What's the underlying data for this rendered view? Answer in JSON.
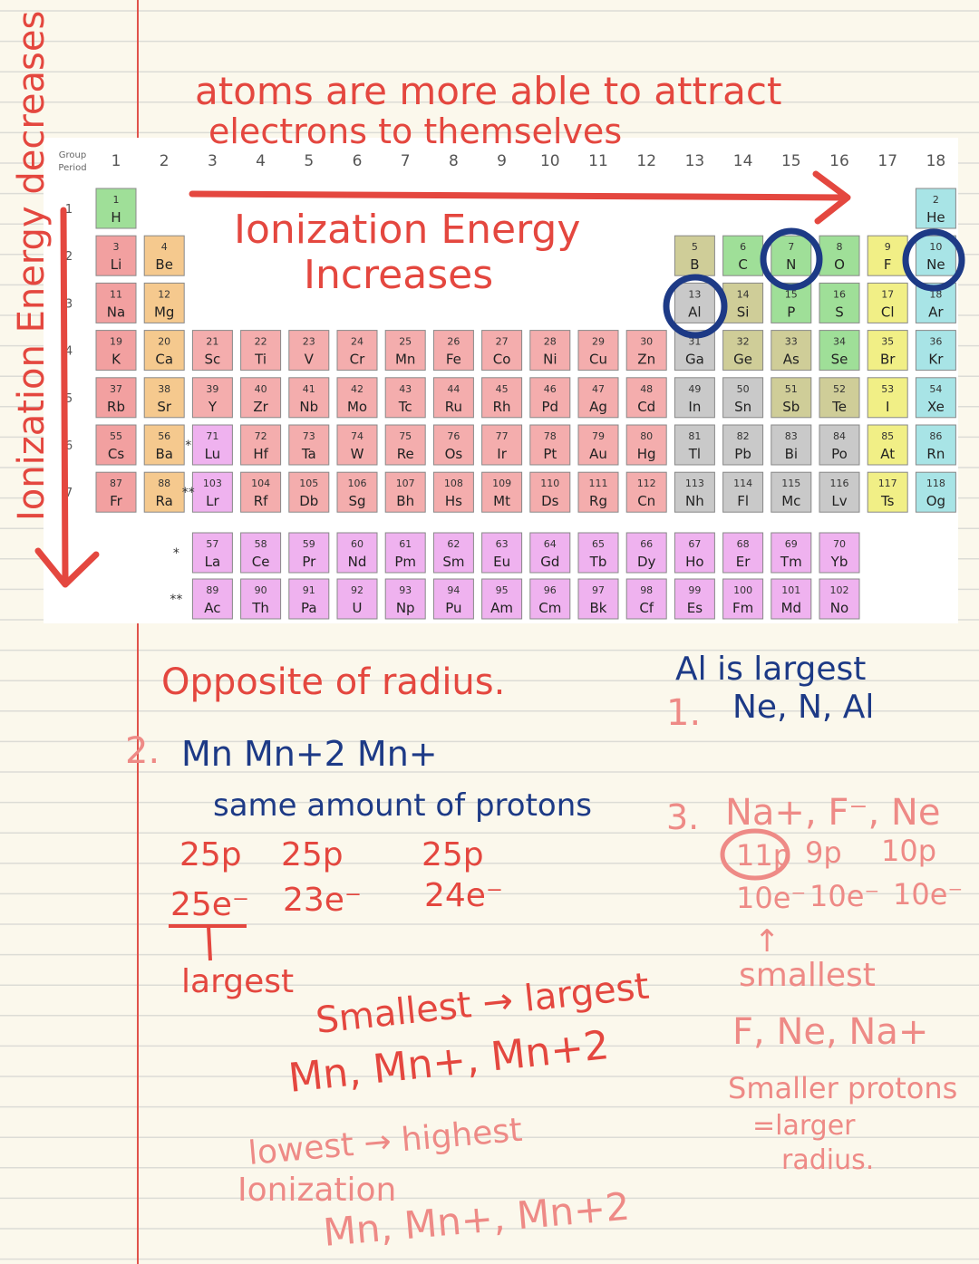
{
  "notes": {
    "top_heading": [
      "atoms are more able to attract",
      "electrons to themselves"
    ],
    "ie_increases": [
      "Ionization Energy",
      "Increases"
    ],
    "ie_decreases": "Ionization Energy decreases",
    "opposite": "Opposite of radius.",
    "q1_answer": "Al is largest",
    "q1_number": "1.",
    "q1_order": "Ne, N, Al",
    "q2_number": "2.",
    "q2_ions": "Mn  Mn+2  Mn+",
    "q2_same": "same amount of protons",
    "q2_protons": [
      "25p",
      "25p",
      "25p"
    ],
    "q2_electrons": [
      "25e⁻",
      "23e⁻",
      "24e⁻"
    ],
    "q2_largest": "largest",
    "q2_size_heading": "Smallest → largest",
    "q2_size_order": "Mn, Mn+, Mn+2",
    "q2_ie_heading": [
      "lowest → highest",
      "Ionization"
    ],
    "q2_ie_order": "Mn, Mn+, Mn+2",
    "q3_number": "3.",
    "q3_species": "Na+, F⁻, Ne",
    "q3_protons": [
      "11p",
      "9p",
      "10p"
    ],
    "q3_electrons": [
      "10e⁻",
      "10e⁻",
      "10e⁻"
    ],
    "q3_arrow": "↑",
    "q3_smallest": "smallest",
    "q3_order": "F, Ne, Na+",
    "q3_reason": [
      "Smaller protons",
      "=larger",
      "radius."
    ]
  },
  "table": {
    "group_label": "Group",
    "period_label": "Period",
    "groups": [
      1,
      2,
      3,
      4,
      5,
      6,
      7,
      8,
      9,
      10,
      11,
      12,
      13,
      14,
      15,
      16,
      17,
      18
    ],
    "period_numbers": [
      1,
      2,
      3,
      4,
      5,
      6,
      7
    ],
    "markers": {
      "lanthanide": "*",
      "actinide": "**"
    },
    "colors": {
      "n": "#9fdf98",
      "g": "#a8e4e6",
      "a": "#f2a0a0",
      "e": "#f5c98e",
      "t": "#f4adad",
      "p": "#c9c9c9",
      "m": "#cfcd98",
      "h": "#f1ef86",
      "f": "#efb2ef"
    },
    "periods": [
      [
        {
          "n": 1,
          "s": "H",
          "g": 1,
          "c": "n"
        },
        {
          "n": 2,
          "s": "He",
          "g": 18,
          "c": "g"
        }
      ],
      [
        {
          "n": 3,
          "s": "Li",
          "g": 1,
          "c": "a"
        },
        {
          "n": 4,
          "s": "Be",
          "g": 2,
          "c": "e"
        },
        {
          "n": 5,
          "s": "B",
          "g": 13,
          "c": "m"
        },
        {
          "n": 6,
          "s": "C",
          "g": 14,
          "c": "n"
        },
        {
          "n": 7,
          "s": "N",
          "g": 15,
          "c": "n"
        },
        {
          "n": 8,
          "s": "O",
          "g": 16,
          "c": "n"
        },
        {
          "n": 9,
          "s": "F",
          "g": 17,
          "c": "h"
        },
        {
          "n": 10,
          "s": "Ne",
          "g": 18,
          "c": "g"
        }
      ],
      [
        {
          "n": 11,
          "s": "Na",
          "g": 1,
          "c": "a"
        },
        {
          "n": 12,
          "s": "Mg",
          "g": 2,
          "c": "e"
        },
        {
          "n": 13,
          "s": "Al",
          "g": 13,
          "c": "p"
        },
        {
          "n": 14,
          "s": "Si",
          "g": 14,
          "c": "m"
        },
        {
          "n": 15,
          "s": "P",
          "g": 15,
          "c": "n"
        },
        {
          "n": 16,
          "s": "S",
          "g": 16,
          "c": "n"
        },
        {
          "n": 17,
          "s": "Cl",
          "g": 17,
          "c": "h"
        },
        {
          "n": 18,
          "s": "Ar",
          "g": 18,
          "c": "g"
        }
      ],
      [
        {
          "n": 19,
          "s": "K",
          "g": 1,
          "c": "a"
        },
        {
          "n": 20,
          "s": "Ca",
          "g": 2,
          "c": "e"
        },
        {
          "n": 21,
          "s": "Sc",
          "g": 3,
          "c": "t"
        },
        {
          "n": 22,
          "s": "Ti",
          "g": 4,
          "c": "t"
        },
        {
          "n": 23,
          "s": "V",
          "g": 5,
          "c": "t"
        },
        {
          "n": 24,
          "s": "Cr",
          "g": 6,
          "c": "t"
        },
        {
          "n": 25,
          "s": "Mn",
          "g": 7,
          "c": "t"
        },
        {
          "n": 26,
          "s": "Fe",
          "g": 8,
          "c": "t"
        },
        {
          "n": 27,
          "s": "Co",
          "g": 9,
          "c": "t"
        },
        {
          "n": 28,
          "s": "Ni",
          "g": 10,
          "c": "t"
        },
        {
          "n": 29,
          "s": "Cu",
          "g": 11,
          "c": "t"
        },
        {
          "n": 30,
          "s": "Zn",
          "g": 12,
          "c": "t"
        },
        {
          "n": 31,
          "s": "Ga",
          "g": 13,
          "c": "p"
        },
        {
          "n": 32,
          "s": "Ge",
          "g": 14,
          "c": "m"
        },
        {
          "n": 33,
          "s": "As",
          "g": 15,
          "c": "m"
        },
        {
          "n": 34,
          "s": "Se",
          "g": 16,
          "c": "n"
        },
        {
          "n": 35,
          "s": "Br",
          "g": 17,
          "c": "h"
        },
        {
          "n": 36,
          "s": "Kr",
          "g": 18,
          "c": "g"
        }
      ],
      [
        {
          "n": 37,
          "s": "Rb",
          "g": 1,
          "c": "a"
        },
        {
          "n": 38,
          "s": "Sr",
          "g": 2,
          "c": "e"
        },
        {
          "n": 39,
          "s": "Y",
          "g": 3,
          "c": "t"
        },
        {
          "n": 40,
          "s": "Zr",
          "g": 4,
          "c": "t"
        },
        {
          "n": 41,
          "s": "Nb",
          "g": 5,
          "c": "t"
        },
        {
          "n": 42,
          "s": "Mo",
          "g": 6,
          "c": "t"
        },
        {
          "n": 43,
          "s": "Tc",
          "g": 7,
          "c": "t"
        },
        {
          "n": 44,
          "s": "Ru",
          "g": 8,
          "c": "t"
        },
        {
          "n": 45,
          "s": "Rh",
          "g": 9,
          "c": "t"
        },
        {
          "n": 46,
          "s": "Pd",
          "g": 10,
          "c": "t"
        },
        {
          "n": 47,
          "s": "Ag",
          "g": 11,
          "c": "t"
        },
        {
          "n": 48,
          "s": "Cd",
          "g": 12,
          "c": "t"
        },
        {
          "n": 49,
          "s": "In",
          "g": 13,
          "c": "p"
        },
        {
          "n": 50,
          "s": "Sn",
          "g": 14,
          "c": "p"
        },
        {
          "n": 51,
          "s": "Sb",
          "g": 15,
          "c": "m"
        },
        {
          "n": 52,
          "s": "Te",
          "g": 16,
          "c": "m"
        },
        {
          "n": 53,
          "s": "I",
          "g": 17,
          "c": "h"
        },
        {
          "n": 54,
          "s": "Xe",
          "g": 18,
          "c": "g"
        }
      ],
      [
        {
          "n": 55,
          "s": "Cs",
          "g": 1,
          "c": "a"
        },
        {
          "n": 56,
          "s": "Ba",
          "g": 2,
          "c": "e"
        },
        {
          "n": 71,
          "s": "Lu",
          "g": 3,
          "c": "f"
        },
        {
          "n": 72,
          "s": "Hf",
          "g": 4,
          "c": "t"
        },
        {
          "n": 73,
          "s": "Ta",
          "g": 5,
          "c": "t"
        },
        {
          "n": 74,
          "s": "W",
          "g": 6,
          "c": "t"
        },
        {
          "n": 75,
          "s": "Re",
          "g": 7,
          "c": "t"
        },
        {
          "n": 76,
          "s": "Os",
          "g": 8,
          "c": "t"
        },
        {
          "n": 77,
          "s": "Ir",
          "g": 9,
          "c": "t"
        },
        {
          "n": 78,
          "s": "Pt",
          "g": 10,
          "c": "t"
        },
        {
          "n": 79,
          "s": "Au",
          "g": 11,
          "c": "t"
        },
        {
          "n": 80,
          "s": "Hg",
          "g": 12,
          "c": "t"
        },
        {
          "n": 81,
          "s": "Tl",
          "g": 13,
          "c": "p"
        },
        {
          "n": 82,
          "s": "Pb",
          "g": 14,
          "c": "p"
        },
        {
          "n": 83,
          "s": "Bi",
          "g": 15,
          "c": "p"
        },
        {
          "n": 84,
          "s": "Po",
          "g": 16,
          "c": "p"
        },
        {
          "n": 85,
          "s": "At",
          "g": 17,
          "c": "h"
        },
        {
          "n": 86,
          "s": "Rn",
          "g": 18,
          "c": "g"
        }
      ],
      [
        {
          "n": 87,
          "s": "Fr",
          "g": 1,
          "c": "a"
        },
        {
          "n": 88,
          "s": "Ra",
          "g": 2,
          "c": "e"
        },
        {
          "n": 103,
          "s": "Lr",
          "g": 3,
          "c": "f"
        },
        {
          "n": 104,
          "s": "Rf",
          "g": 4,
          "c": "t"
        },
        {
          "n": 105,
          "s": "Db",
          "g": 5,
          "c": "t"
        },
        {
          "n": 106,
          "s": "Sg",
          "g": 6,
          "c": "t"
        },
        {
          "n": 107,
          "s": "Bh",
          "g": 7,
          "c": "t"
        },
        {
          "n": 108,
          "s": "Hs",
          "g": 8,
          "c": "t"
        },
        {
          "n": 109,
          "s": "Mt",
          "g": 9,
          "c": "t"
        },
        {
          "n": 110,
          "s": "Ds",
          "g": 10,
          "c": "t"
        },
        {
          "n": 111,
          "s": "Rg",
          "g": 11,
          "c": "t"
        },
        {
          "n": 112,
          "s": "Cn",
          "g": 12,
          "c": "t"
        },
        {
          "n": 113,
          "s": "Nh",
          "g": 13,
          "c": "p"
        },
        {
          "n": 114,
          "s": "Fl",
          "g": 14,
          "c": "p"
        },
        {
          "n": 115,
          "s": "Mc",
          "g": 15,
          "c": "p"
        },
        {
          "n": 116,
          "s": "Lv",
          "g": 16,
          "c": "p"
        },
        {
          "n": 117,
          "s": "Ts",
          "g": 17,
          "c": "h"
        },
        {
          "n": 118,
          "s": "Og",
          "g": 18,
          "c": "g"
        }
      ]
    ],
    "f_block": [
      [
        {
          "n": 57,
          "s": "La"
        },
        {
          "n": 58,
          "s": "Ce"
        },
        {
          "n": 59,
          "s": "Pr"
        },
        {
          "n": 60,
          "s": "Nd"
        },
        {
          "n": 61,
          "s": "Pm"
        },
        {
          "n": 62,
          "s": "Sm"
        },
        {
          "n": 63,
          "s": "Eu"
        },
        {
          "n": 64,
          "s": "Gd"
        },
        {
          "n": 65,
          "s": "Tb"
        },
        {
          "n": 66,
          "s": "Dy"
        },
        {
          "n": 67,
          "s": "Ho"
        },
        {
          "n": 68,
          "s": "Er"
        },
        {
          "n": 69,
          "s": "Tm"
        },
        {
          "n": 70,
          "s": "Yb"
        }
      ],
      [
        {
          "n": 89,
          "s": "Ac"
        },
        {
          "n": 90,
          "s": "Th"
        },
        {
          "n": 91,
          "s": "Pa"
        },
        {
          "n": 92,
          "s": "U"
        },
        {
          "n": 93,
          "s": "Np"
        },
        {
          "n": 94,
          "s": "Pu"
        },
        {
          "n": 95,
          "s": "Am"
        },
        {
          "n": 96,
          "s": "Cm"
        },
        {
          "n": 97,
          "s": "Bk"
        },
        {
          "n": 98,
          "s": "Cf"
        },
        {
          "n": 99,
          "s": "Es"
        },
        {
          "n": 100,
          "s": "Fm"
        },
        {
          "n": 101,
          "s": "Md"
        },
        {
          "n": 102,
          "s": "No"
        }
      ]
    ]
  }
}
